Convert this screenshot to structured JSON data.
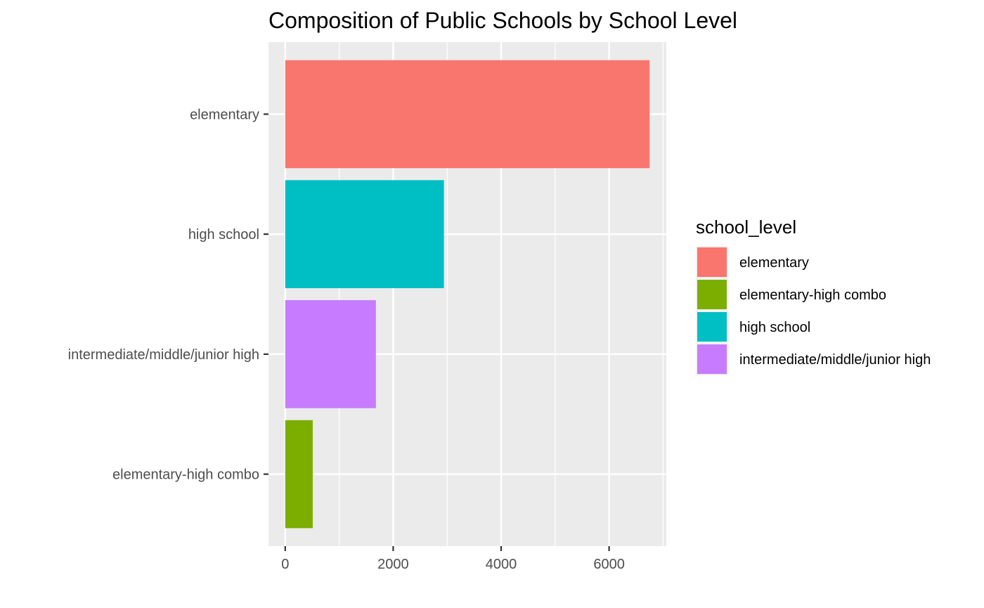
{
  "chart_data": {
    "type": "bar",
    "orientation": "horizontal",
    "title": "Composition of Public Schools by School Level",
    "xlabel": "",
    "ylabel": "",
    "categories": [
      "elementary",
      "high school",
      "intermediate/middle/junior high",
      "elementary-high combo"
    ],
    "values": [
      6750,
      2940,
      1680,
      510
    ],
    "colors": [
      "#F8766D",
      "#00BFC4",
      "#C77CFF",
      "#7CAE00"
    ],
    "xlim": [
      -310,
      7060
    ],
    "xticks": [
      "0",
      "2000",
      "4000",
      "6000"
    ],
    "xtick_values": [
      0,
      2000,
      4000,
      6000
    ],
    "x_minor_values": [
      1000,
      3000,
      5000,
      7000
    ],
    "grid": true,
    "legend": {
      "title": "school_level",
      "position": "right",
      "items": [
        {
          "label": "elementary",
          "color": "#F8766D"
        },
        {
          "label": "elementary-high combo",
          "color": "#7CAE00"
        },
        {
          "label": "high school",
          "color": "#00BFC4"
        },
        {
          "label": "intermediate/middle/junior high",
          "color": "#C77CFF"
        }
      ]
    }
  }
}
